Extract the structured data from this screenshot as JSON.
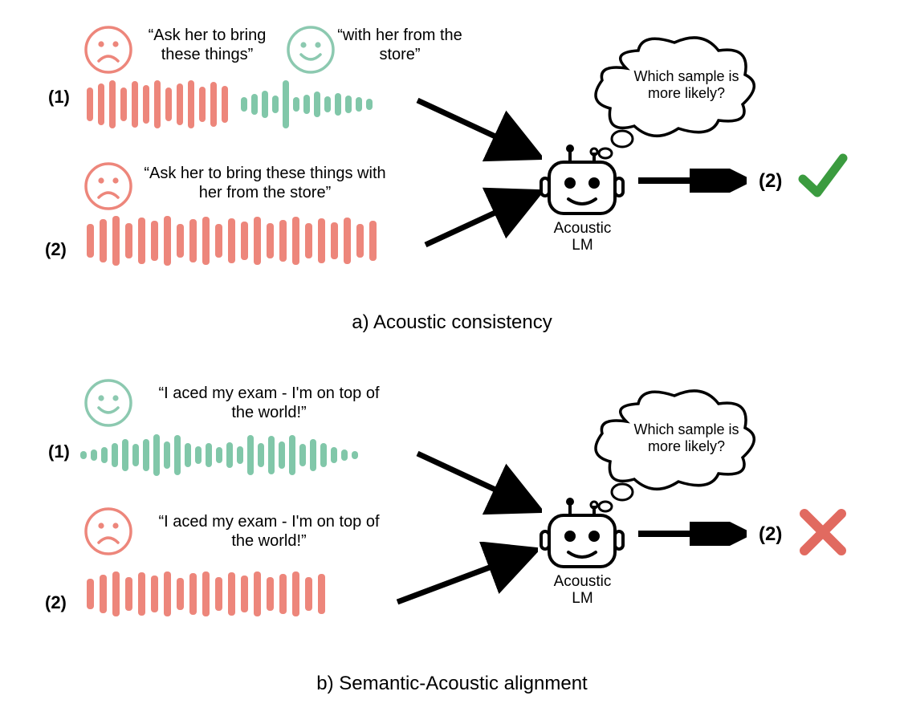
{
  "colors": {
    "red": "#ed867b",
    "green_face": "#8cc9b0",
    "green_wave": "#81c7a9",
    "black": "#000000",
    "check": "#3b9b3f",
    "cross": "#e16a60"
  },
  "typography": {
    "quote_fontsize": 20,
    "label_num_fontsize": 22,
    "caption_fontsize": 24,
    "robot_label_fontsize": 19,
    "cloud_text_fontsize": 18
  },
  "panel_a": {
    "caption": "a) Acoustic consistency",
    "sample1": {
      "label": "(1)",
      "face1_color": "#ed867b",
      "face1_mood": "sad",
      "quote1": "“Ask her to bring these things”",
      "face2_color": "#8cc9b0",
      "face2_mood": "happy",
      "quote2": "“with her from the store”",
      "wave1": {
        "color": "#ed867b",
        "bars": [
          42,
          52,
          60,
          42,
          58,
          48,
          60,
          42,
          52,
          60,
          44,
          56,
          46
        ]
      },
      "wave2": {
        "color": "#81c7a9",
        "bars": [
          18,
          26,
          34,
          22,
          60,
          18,
          24,
          32,
          20,
          28,
          22,
          18,
          14
        ]
      }
    },
    "sample2": {
      "label": "(2)",
      "face_color": "#ed867b",
      "face_mood": "sad",
      "quote": "“Ask her to bring these things with her from the store”",
      "wave": {
        "color": "#ed867b",
        "bars": [
          42,
          54,
          62,
          44,
          58,
          50,
          62,
          42,
          54,
          60,
          42,
          56,
          48,
          60,
          44,
          52,
          60,
          44,
          56,
          46,
          58,
          42,
          50
        ]
      }
    },
    "robot_label": "Acoustic LM",
    "cloud_text": "Which sample is more likely?",
    "result_label": "(2)",
    "result": "check"
  },
  "panel_b": {
    "caption": "b) Semantic-Acoustic alignment",
    "sample1": {
      "label": "(1)",
      "face_color": "#8cc9b0",
      "face_mood": "happy",
      "quote": "“I aced my exam - I'm on top of the world!”",
      "wave": {
        "color": "#81c7a9",
        "bars": [
          10,
          14,
          20,
          30,
          40,
          28,
          40,
          52,
          34,
          50,
          30,
          22,
          30,
          20,
          32,
          22,
          50,
          30,
          48,
          34,
          50,
          28,
          40,
          30,
          20,
          14,
          10
        ]
      }
    },
    "sample2": {
      "label": "(2)",
      "face_color": "#ed867b",
      "face_mood": "sad",
      "quote": "“I aced my exam - I'm on top of the world!”",
      "wave": {
        "color": "#ed867b",
        "bars": [
          38,
          48,
          56,
          42,
          54,
          46,
          56,
          40,
          52,
          56,
          42,
          54,
          46,
          56,
          42,
          50,
          56,
          42,
          50
        ]
      }
    },
    "robot_label": "Acoustic LM",
    "cloud_text": "Which sample is more likely?",
    "result_label": "(2)",
    "result": "cross"
  }
}
